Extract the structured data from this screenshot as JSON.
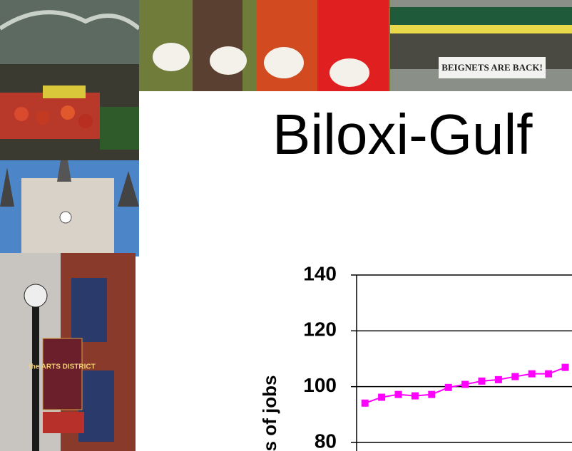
{
  "title": "Biloxi-Gulf",
  "photos": {
    "cafe_sign": "BEIGNETS ARE BACK!",
    "arts_sign": "the ARTS DISTRICT"
  },
  "chart_data": {
    "type": "line",
    "ylabel": "s of jobs",
    "categories": [
      null,
      null,
      null,
      null,
      null,
      null,
      null,
      null,
      null,
      null,
      null,
      null,
      null
    ],
    "values": [
      94.1,
      96.2,
      97.2,
      96.7,
      97.2,
      99.7,
      100.8,
      102,
      102.5,
      103.6,
      104.6,
      104.6,
      106.9
    ],
    "color": "#ff00ff",
    "ylim": [
      80,
      140
    ],
    "yticks": [
      80,
      100,
      120,
      140
    ],
    "grid": true
  }
}
